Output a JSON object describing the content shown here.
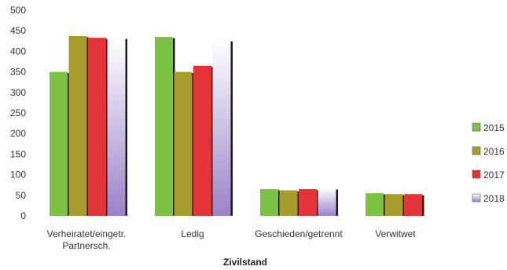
{
  "chart_data": {
    "type": "bar",
    "title": "",
    "xlabel": "Zivilstand",
    "ylabel": "",
    "ylim": [
      0,
      500
    ],
    "yticks": [
      0,
      50,
      100,
      150,
      200,
      250,
      300,
      350,
      400,
      450,
      500
    ],
    "grid": false,
    "legend_position": "right",
    "categories": [
      [
        "Verheiratet/eingetr.",
        "Partnersch."
      ],
      [
        "Ledig"
      ],
      [
        "Geschieden/getrennt"
      ],
      [
        "Verwitwet"
      ]
    ],
    "series": [
      {
        "name": "2015",
        "color": "#7cc242",
        "values": [
          350,
          435,
          65,
          55
        ]
      },
      {
        "name": "2016",
        "color": "#a69d2a",
        "values": [
          437,
          350,
          62,
          53
        ]
      },
      {
        "name": "2017",
        "color": "#e3343a",
        "values": [
          433,
          365,
          65,
          53
        ]
      },
      {
        "name": "2018",
        "color": "#c9b6e6",
        "values": [
          433,
          427,
          67,
          null
        ]
      }
    ]
  }
}
